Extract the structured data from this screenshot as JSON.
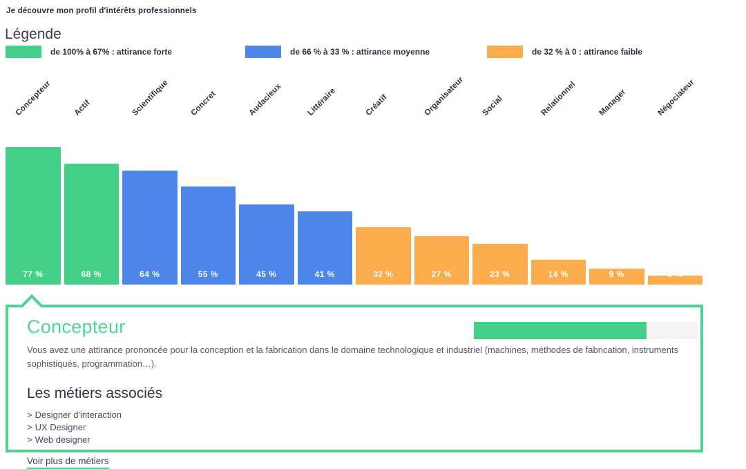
{
  "page": {
    "title": "Je découvre mon profil d'intérêts professionnels"
  },
  "colors": {
    "green_strong": "#45d089",
    "blue_medium": "#4d86e8",
    "orange_weak": "#fbad4d",
    "panel_border_green": "#4ed28e",
    "panel_title_green": "#52d593",
    "track_gray": "#f4f4f6"
  },
  "legend": {
    "heading": "Légende",
    "items": [
      {
        "label": "de 100% à 67% : attirance forte",
        "color": "#45d089"
      },
      {
        "label": "de 66 % à 33 % : attirance moyenne",
        "color": "#4d86e8"
      },
      {
        "label": "de 32 % à 0 : attirance faible",
        "color": "#fbad4d"
      }
    ]
  },
  "chart_data": {
    "type": "bar",
    "title": "Je découvre mon profil d'intérêts professionnels",
    "categories": [
      "Concepteur",
      "Actif",
      "Scientifique",
      "Concret",
      "Audacieux",
      "Littéraire",
      "Créatif",
      "Organisateur",
      "Social",
      "Relationnel",
      "Manager",
      "Négociateur"
    ],
    "values": [
      77,
      68,
      64,
      55,
      45,
      41,
      32,
      27,
      23,
      14,
      9,
      5
    ],
    "value_labels": [
      "77 %",
      "68 %",
      "64 %",
      "55 %",
      "45 %",
      "41 %",
      "32 %",
      "27 %",
      "23 %",
      "14 %",
      "9 %",
      "5 %"
    ],
    "bar_colors": [
      "#45d089",
      "#45d089",
      "#4d86e8",
      "#4d86e8",
      "#4d86e8",
      "#4d86e8",
      "#fbad4d",
      "#fbad4d",
      "#fbad4d",
      "#fbad4d",
      "#fbad4d",
      "#fbad4d"
    ],
    "unit": "%",
    "ylim": [
      0,
      100
    ],
    "grid": false,
    "category_label_rotation": -45,
    "legend_position": "top"
  },
  "detail_panel": {
    "title": "Concepteur",
    "progress_percent": 77,
    "description": "Vous avez une attirance prononcée pour la conception et la fabrication dans le domaine technologique et industriel (machines, méthodes de fabrication, instruments sophistiqués, programmation…).",
    "jobs_heading": "Les métiers associés",
    "job_prefix": ">",
    "jobs": [
      "Designer d'interaction",
      "UX Designer",
      "Web designer"
    ],
    "more_link_label": "Voir plus de métiers"
  }
}
